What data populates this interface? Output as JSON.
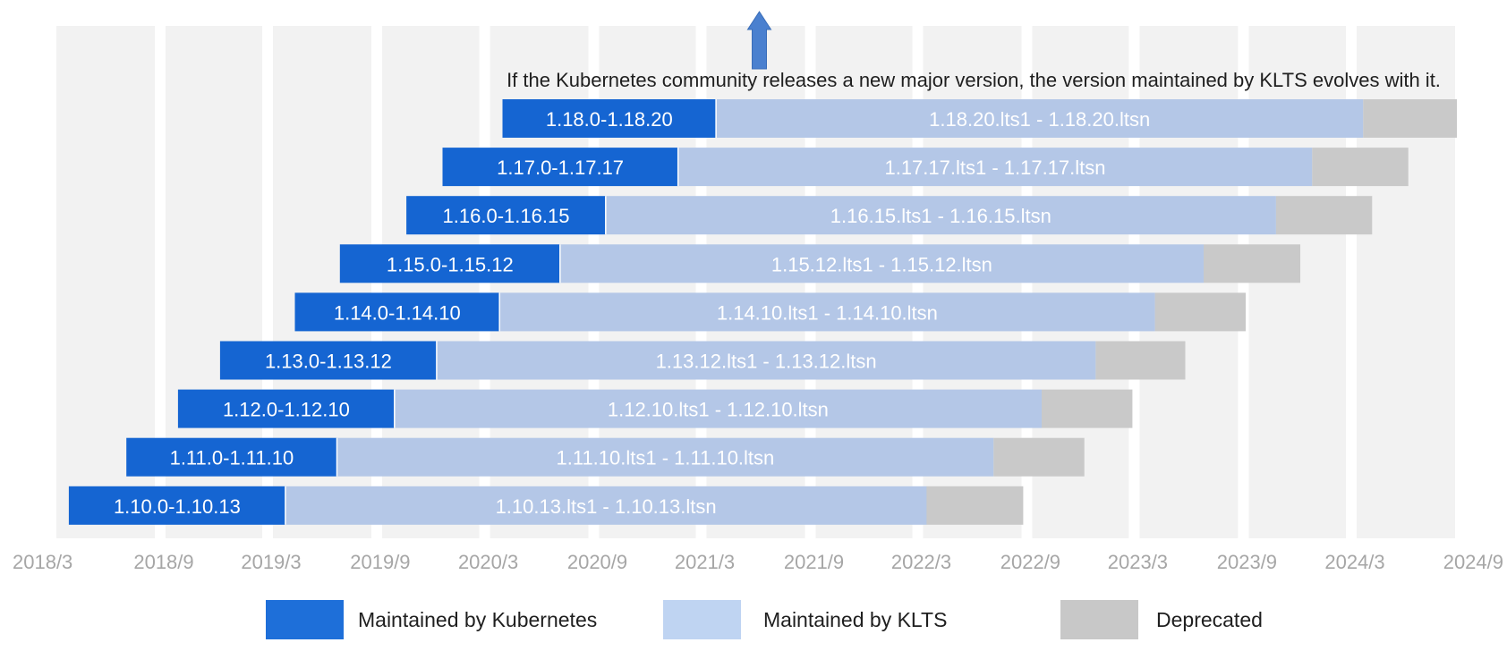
{
  "chart_data": {
    "type": "bar",
    "orientation": "horizontal",
    "stacked": true,
    "annotation": "If the Kubernetes community releases a new major version, the version maintained by KLTS evolves with it.",
    "x_ticks": [
      "2018/3",
      "2018/9",
      "2019/3",
      "2019/9",
      "2020/3",
      "2020/9",
      "2021/3",
      "2021/9",
      "2022/3",
      "2022/9",
      "2023/3",
      "2023/9",
      "2024/3",
      "2024/9"
    ],
    "xlim": [
      "2018-03",
      "2024-09"
    ],
    "grid": "vertical bands",
    "legend_position": "bottom",
    "series": [
      {
        "name": "Maintained by Kubernetes",
        "color": "#1e6fd9"
      },
      {
        "name": "Maintained by KLTS",
        "color": "#b4c8e6"
      },
      {
        "name": "Deprecated",
        "color": "#c8c8c8"
      }
    ],
    "legend_swatch_colors": [
      "#1e6fd9",
      "#bfd4f2",
      "#c8c8c8"
    ],
    "rows": [
      {
        "k8s_label": "1.18.0-1.18.20",
        "klts_label": "1.18.20.lts1 - 1.18.20.ltsn",
        "k8s": [
          "2020-03-25",
          "2021-03-20"
        ],
        "klts": [
          "2021-03-20",
          "2024-03-15"
        ],
        "deprecated": [
          "2024-03-15",
          "2024-08-20"
        ]
      },
      {
        "k8s_label": "1.17.0-1.17.17",
        "klts_label": "1.17.17.lts1 - 1.17.17.ltsn",
        "k8s": [
          "2019-12-15",
          "2021-01-15"
        ],
        "klts": [
          "2021-01-15",
          "2023-12-20"
        ],
        "deprecated": [
          "2023-12-20",
          "2024-05-30"
        ]
      },
      {
        "k8s_label": "1.16.0-1.16.15",
        "klts_label": "1.16.15.lts1 - 1.16.15.ltsn",
        "k8s": [
          "2019-10-15",
          "2020-09-15"
        ],
        "klts": [
          "2020-09-15",
          "2023-10-20"
        ],
        "deprecated": [
          "2023-10-20",
          "2024-03-30"
        ]
      },
      {
        "k8s_label": "1.15.0-1.15.12",
        "klts_label": "1.15.12.lts1 - 1.15.12.ltsn",
        "k8s": [
          "2019-06-25",
          "2020-06-30"
        ],
        "klts": [
          "2020-06-30",
          "2023-06-20"
        ],
        "deprecated": [
          "2023-06-20",
          "2023-11-30"
        ]
      },
      {
        "k8s_label": "1.14.0-1.14.10",
        "klts_label": "1.14.10.lts1 - 1.14.10.ltsn",
        "k8s": [
          "2019-04-10",
          "2020-03-20"
        ],
        "klts": [
          "2020-03-20",
          "2023-03-30"
        ],
        "deprecated": [
          "2023-03-30",
          "2023-08-30"
        ]
      },
      {
        "k8s_label": "1.13.0-1.13.12",
        "klts_label": "1.13.12.lts1 - 1.13.12.ltsn",
        "k8s": [
          "2018-12-05",
          "2019-12-05"
        ],
        "klts": [
          "2019-12-05",
          "2022-12-20"
        ],
        "deprecated": [
          "2022-12-20",
          "2023-05-20"
        ]
      },
      {
        "k8s_label": "1.12.0-1.12.10",
        "klts_label": "1.12.10.lts1 - 1.12.10.ltsn",
        "k8s": [
          "2018-09-25",
          "2019-09-25"
        ],
        "klts": [
          "2019-09-25",
          "2022-09-20"
        ],
        "deprecated": [
          "2022-09-20",
          "2023-02-20"
        ]
      },
      {
        "k8s_label": "1.11.0-1.11.10",
        "klts_label": "1.11.10.lts1 - 1.11.10.ltsn",
        "k8s": [
          "2018-06-30",
          "2019-06-20"
        ],
        "klts": [
          "2019-06-20",
          "2022-07-01"
        ],
        "deprecated": [
          "2022-07-01",
          "2022-12-01"
        ]
      },
      {
        "k8s_label": "1.10.0-1.10.13",
        "klts_label": "1.10.13.lts1 - 1.10.13.ltsn",
        "k8s": [
          "2018-03-25",
          "2019-03-25"
        ],
        "klts": [
          "2019-03-25",
          "2022-03-10"
        ],
        "deprecated": [
          "2022-03-10",
          "2022-08-20"
        ]
      }
    ]
  }
}
